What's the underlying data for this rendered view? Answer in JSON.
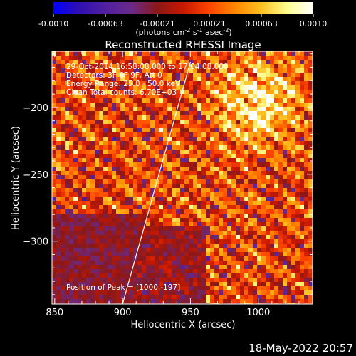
{
  "chart_data": {
    "type": "heatmap",
    "title": "Reconstructed RHESSI Image",
    "xlabel": "Heliocentric X (arcsec)",
    "ylabel": "Heliocentric Y (arcsec)",
    "xlim": [
      848,
      1040
    ],
    "ylim": [
      -347,
      -158
    ],
    "x_ticks": [
      850,
      900,
      950,
      1000
    ],
    "y_ticks": [
      -200,
      -250,
      -300
    ],
    "colorbar": {
      "min": -0.001,
      "max": 0.001,
      "tick_labels": [
        "-0.0010",
        "-0.00063",
        "-0.00021",
        "0.00021",
        "0.00063",
        "0.0010"
      ],
      "unit_prefix": "(photons cm",
      "unit_sup1": "-2",
      "unit_mid": " s",
      "unit_sup2": "-1",
      "unit_end": " asec",
      "unit_sup3": "-2",
      "unit_close": ")",
      "colormap": [
        "#0000ff",
        "#3010b0",
        "#5020a0",
        "#6a2a8a",
        "#8a1818",
        "#c81800",
        "#ff4400",
        "#ff8800",
        "#ffc020",
        "#ffff90",
        "#ffffff"
      ]
    },
    "annotations": [
      "29-Oct-2014 16:58:08.000 to 17:04:08.000",
      "Detectors: 3F 6F 9F, Att 0",
      "Energy Range: 25.0 - 50.0 keV",
      "Clean    Total counts: 6.70E+03",
      "Position of Peak = [1000,-197]"
    ],
    "limb_line": {
      "x": [
        900,
        950
      ],
      "y": [
        -347,
        -166
      ]
    },
    "peak": [
      1000,
      -197
    ]
  },
  "footer": {
    "date": "18-May-2022 20:57"
  }
}
